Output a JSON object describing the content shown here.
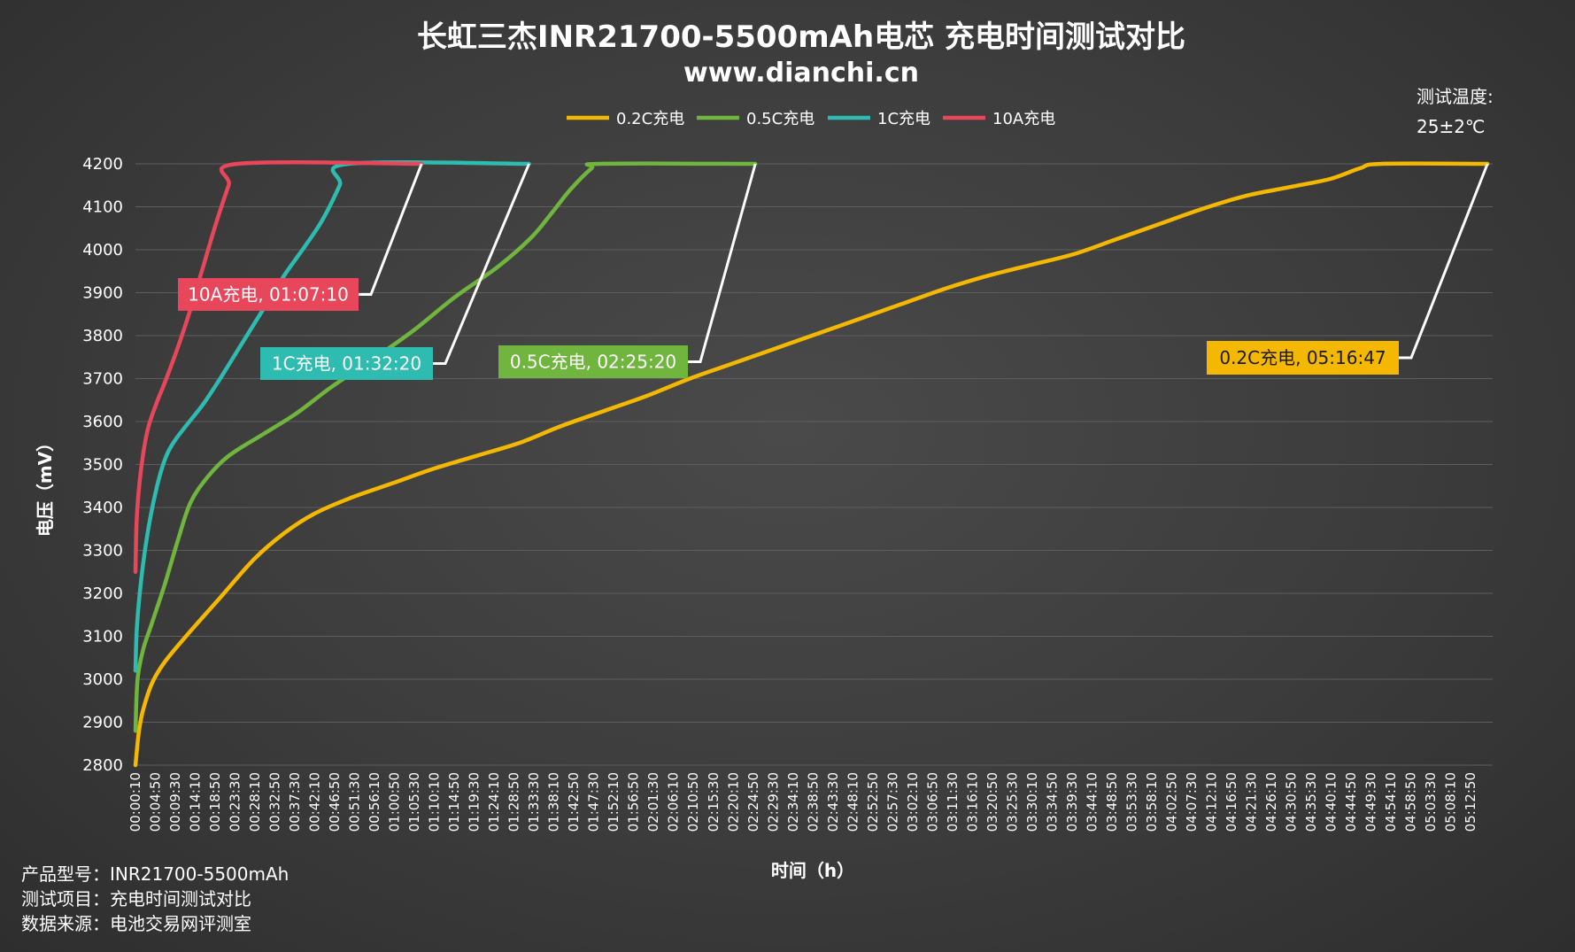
{
  "chart_data": {
    "type": "line",
    "title": "长虹三杰INR21700-5500mAh电芯 充电时间测试对比",
    "subtitle": "www.dianchi.cn",
    "xlabel": "时间（h）",
    "ylabel": "电压（mV）",
    "ylim": [
      2800,
      4200
    ],
    "yticks": [
      2800,
      2900,
      3000,
      3100,
      3200,
      3300,
      3400,
      3500,
      3600,
      3700,
      3800,
      3900,
      4000,
      4100,
      4200
    ],
    "xlim_seconds": [
      10,
      19080
    ],
    "x_tick_labels": [
      "00:00:10",
      "00:04:50",
      "00:09:30",
      "00:14:10",
      "00:18:50",
      "00:23:30",
      "00:28:10",
      "00:32:50",
      "00:37:30",
      "00:42:10",
      "00:46:50",
      "00:51:30",
      "00:56:10",
      "01:00:50",
      "01:05:30",
      "01:10:10",
      "01:14:50",
      "01:19:30",
      "01:24:10",
      "01:28:50",
      "01:33:30",
      "01:38:10",
      "01:42:50",
      "01:47:30",
      "01:52:10",
      "01:56:50",
      "02:01:30",
      "02:06:10",
      "02:10:50",
      "02:15:30",
      "02:20:10",
      "02:24:50",
      "02:29:30",
      "02:34:10",
      "02:38:50",
      "02:43:30",
      "02:48:10",
      "02:52:50",
      "02:57:30",
      "03:02:10",
      "03:06:50",
      "03:11:30",
      "03:16:10",
      "03:20:50",
      "03:25:30",
      "03:30:10",
      "03:34:50",
      "03:39:30",
      "03:44:10",
      "03:48:50",
      "03:53:30",
      "03:58:10",
      "04:02:50",
      "04:07:30",
      "04:12:10",
      "04:16:50",
      "04:21:30",
      "04:26:10",
      "04:30:50",
      "04:35:30",
      "04:40:10",
      "04:44:50",
      "04:49:30",
      "04:54:10",
      "04:58:50",
      "05:03:30",
      "05:08:10",
      "05:12:50"
    ],
    "grid": true,
    "legend_position": "top",
    "series": [
      {
        "name": "0.2C充电",
        "color": "#F5B800",
        "callout": "0.2C充电, 05:16:47",
        "end_time": "05:16:47",
        "points": [
          [
            "00:00:10",
            2800
          ],
          [
            "00:01:00",
            2880
          ],
          [
            "00:02:00",
            2930
          ],
          [
            "00:04:00",
            2990
          ],
          [
            "00:07:00",
            3040
          ],
          [
            "00:12:00",
            3100
          ],
          [
            "00:20:00",
            3190
          ],
          [
            "00:28:00",
            3280
          ],
          [
            "00:35:00",
            3340
          ],
          [
            "00:42:00",
            3385
          ],
          [
            "00:50:00",
            3420
          ],
          [
            "01:00:00",
            3455
          ],
          [
            "01:10:00",
            3490
          ],
          [
            "01:20:00",
            3520
          ],
          [
            "01:30:00",
            3550
          ],
          [
            "01:40:00",
            3590
          ],
          [
            "01:50:00",
            3625
          ],
          [
            "02:00:00",
            3660
          ],
          [
            "02:10:00",
            3700
          ],
          [
            "02:20:00",
            3735
          ],
          [
            "02:30:00",
            3770
          ],
          [
            "02:40:00",
            3805
          ],
          [
            "02:50:00",
            3840
          ],
          [
            "03:00:00",
            3875
          ],
          [
            "03:10:00",
            3910
          ],
          [
            "03:20:00",
            3940
          ],
          [
            "03:30:00",
            3965
          ],
          [
            "03:40:00",
            3990
          ],
          [
            "03:50:00",
            4025
          ],
          [
            "04:00:00",
            4060
          ],
          [
            "04:10:00",
            4095
          ],
          [
            "04:20:00",
            4125
          ],
          [
            "04:30:00",
            4145
          ],
          [
            "04:40:00",
            4165
          ],
          [
            "04:47:00",
            4190
          ],
          [
            "04:52:00",
            4200
          ],
          [
            "05:16:47",
            4200
          ]
        ]
      },
      {
        "name": "0.5C充电",
        "color": "#70B53D",
        "callout": "0.5C充电, 02:25:20",
        "end_time": "02:25:20",
        "points": [
          [
            "00:00:10",
            2880
          ],
          [
            "00:00:40",
            3000
          ],
          [
            "00:02:00",
            3070
          ],
          [
            "00:04:00",
            3130
          ],
          [
            "00:07:00",
            3220
          ],
          [
            "00:10:00",
            3320
          ],
          [
            "00:13:00",
            3410
          ],
          [
            "00:17:00",
            3470
          ],
          [
            "00:22:00",
            3520
          ],
          [
            "00:30:00",
            3570
          ],
          [
            "00:38:00",
            3620
          ],
          [
            "00:46:00",
            3680
          ],
          [
            "00:55:00",
            3740
          ],
          [
            "01:05:00",
            3810
          ],
          [
            "01:15:00",
            3890
          ],
          [
            "01:25:00",
            3960
          ],
          [
            "01:33:00",
            4030
          ],
          [
            "01:38:00",
            4090
          ],
          [
            "01:42:00",
            4140
          ],
          [
            "01:47:00",
            4190
          ],
          [
            "01:49:00",
            4200
          ],
          [
            "02:25:20",
            4200
          ]
        ]
      },
      {
        "name": "1C充电",
        "color": "#2EBCB0",
        "callout": "1C充电, 01:32:20",
        "end_time": "01:32:20",
        "points": [
          [
            "00:00:10",
            3020
          ],
          [
            "00:00:30",
            3120
          ],
          [
            "00:01:30",
            3230
          ],
          [
            "00:03:00",
            3340
          ],
          [
            "00:05:00",
            3440
          ],
          [
            "00:07:00",
            3510
          ],
          [
            "00:09:00",
            3550
          ],
          [
            "00:12:00",
            3590
          ],
          [
            "00:16:00",
            3640
          ],
          [
            "00:20:00",
            3700
          ],
          [
            "00:25:00",
            3780
          ],
          [
            "00:30:00",
            3860
          ],
          [
            "00:35:00",
            3940
          ],
          [
            "00:40:00",
            4010
          ],
          [
            "00:44:00",
            4070
          ],
          [
            "00:48:00",
            4150
          ],
          [
            "00:50:00",
            4200
          ],
          [
            "01:32:20",
            4200
          ]
        ]
      },
      {
        "name": "10A充电",
        "color": "#E8465A",
        "callout": "10A充电, 01:07:10",
        "end_time": "01:07:10",
        "points": [
          [
            "00:00:10",
            3250
          ],
          [
            "00:00:30",
            3380
          ],
          [
            "00:01:30",
            3490
          ],
          [
            "00:03:00",
            3580
          ],
          [
            "00:05:00",
            3640
          ],
          [
            "00:07:00",
            3690
          ],
          [
            "00:10:00",
            3770
          ],
          [
            "00:13:00",
            3860
          ],
          [
            "00:16:00",
            3960
          ],
          [
            "00:19:00",
            4060
          ],
          [
            "00:22:00",
            4150
          ],
          [
            "00:24:00",
            4200
          ],
          [
            "01:07:10",
            4200
          ]
        ]
      }
    ]
  },
  "notes": {
    "temperature_label": "测试温度:",
    "temperature_value": "25±2℃"
  },
  "footer": [
    "产品型号：INR21700-5500mAh",
    "测试项目：充电时间测试对比",
    "数据来源：电池交易网评测室"
  ]
}
